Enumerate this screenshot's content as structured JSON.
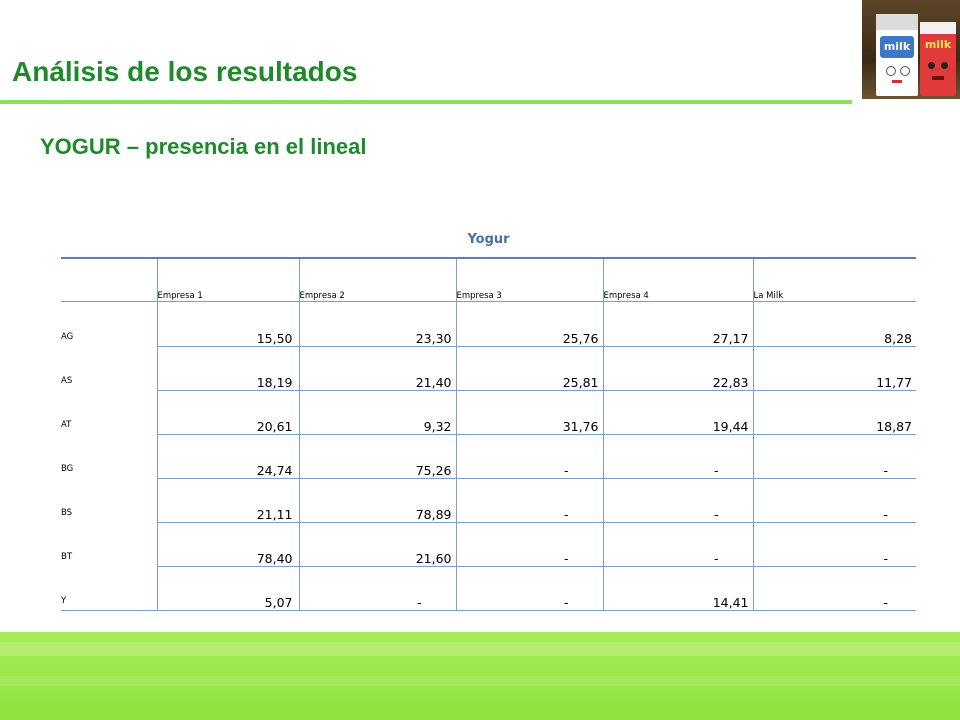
{
  "slide": {
    "title": "Análisis de los resultados",
    "subtitle": "YOGUR – presencia en el lineal"
  },
  "photo": {
    "carton_left_label": "milk",
    "carton_right_label": "milk"
  },
  "table": {
    "caption": "Yogur",
    "columns": [
      "Empresa 1",
      "Empresa 2",
      "Empresa 3",
      "Empresa 4",
      "La Milk"
    ],
    "rows": [
      {
        "label": "AG",
        "values": [
          "15,50",
          "23,30",
          "25,76",
          "27,17",
          "8,28"
        ]
      },
      {
        "label": "AS",
        "values": [
          "18,19",
          "21,40",
          "25,81",
          "22,83",
          "11,77"
        ]
      },
      {
        "label": "AT",
        "values": [
          "20,61",
          "9,32",
          "31,76",
          "19,44",
          "18,87"
        ]
      },
      {
        "label": "BG",
        "values": [
          "24,74",
          "75,26",
          "-",
          "-",
          "-"
        ]
      },
      {
        "label": "BS",
        "values": [
          "21,11",
          "78,89",
          "-",
          "-",
          "-"
        ]
      },
      {
        "label": "BT",
        "values": [
          "78,40",
          "21,60",
          "-",
          "-",
          "-"
        ]
      },
      {
        "label": "Y",
        "values": [
          "5,07",
          "-",
          "-",
          "14,41",
          "-"
        ]
      }
    ]
  },
  "colors": {
    "title_green": "#1f8a2c",
    "rule_green": "#8ee05a",
    "footer_green": "#9be84a",
    "caption_blue": "#4a6fa5",
    "grid_blue": "#7f9ecb"
  }
}
